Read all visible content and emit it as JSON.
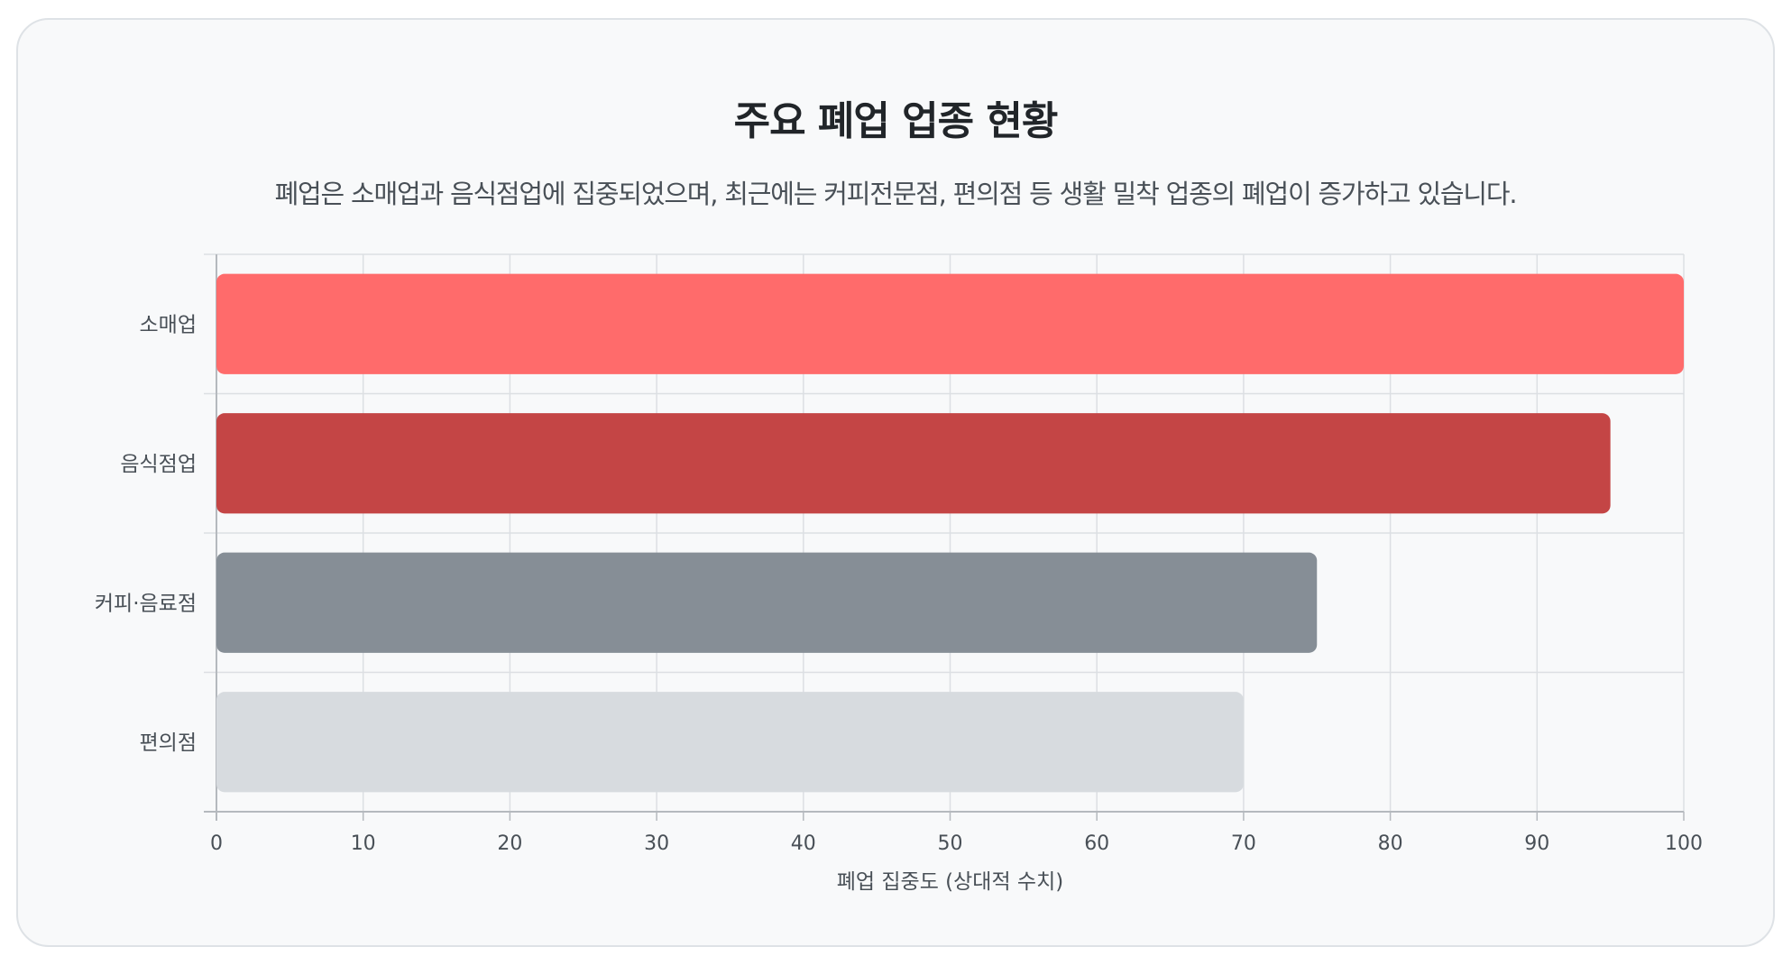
{
  "card": {
    "title": "주요 폐업 업종 현황",
    "subtitle": "폐업은 소매업과 음식점업에 집중되었으며, 최근에는 커피전문점, 편의점 등 생활 밀착 업종의 폐업이 증가하고 있습니다."
  },
  "chart_data": {
    "type": "bar",
    "orientation": "horizontal",
    "categories": [
      "소매업",
      "음식점업",
      "커피·음료점",
      "편의점"
    ],
    "values": [
      100,
      95,
      75,
      70
    ],
    "colors": [
      "#ff6b6b",
      "#c44545",
      "#868e96",
      "#d7dbdf"
    ],
    "xlabel": "폐업 집중도 (상대적 수치)",
    "ylabel": "",
    "xlim": [
      0,
      100
    ],
    "xticks": [
      0,
      10,
      20,
      30,
      40,
      50,
      60,
      70,
      80,
      90,
      100
    ],
    "grid": true,
    "legend": "none"
  }
}
